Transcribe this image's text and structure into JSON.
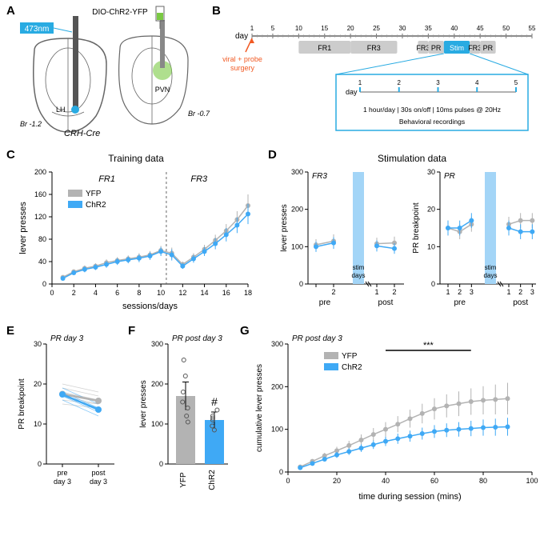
{
  "panelA": {
    "label": "A",
    "virus_label": "DIO-ChR2-YFP",
    "wavelength": "473nm",
    "wavelength_bg": "#29abe2",
    "region_lh": "LH",
    "region_pvn": "PVN",
    "bregma1": "Br -1.2",
    "bregma2": "Br -0.7",
    "genotype": "CRH-Cre",
    "brain_outline": "#666666",
    "fiber_color": "#555555",
    "virus_color": "#7ac943"
  },
  "panelB": {
    "label": "B",
    "day_label": "day",
    "days": [
      1,
      5,
      10,
      15,
      20,
      25,
      30,
      35,
      40,
      45,
      50,
      55
    ],
    "surgery_label": "viral + probe\nsurgery",
    "surgery_color": "#f15a24",
    "phases": [
      {
        "label": "FR1",
        "start": 10,
        "end": 20,
        "color": "#cccccc"
      },
      {
        "label": "FR3",
        "start": 20,
        "end": 29,
        "color": "#cccccc"
      },
      {
        "label": "FR3",
        "start": 33,
        "end": 35,
        "color": "#cccccc"
      },
      {
        "label": "PR",
        "start": 35,
        "end": 38,
        "color": "#cccccc"
      },
      {
        "label": "Stim",
        "start": 38,
        "end": 43,
        "color": "#29abe2"
      },
      {
        "label": "FR3",
        "start": 43,
        "end": 45,
        "color": "#cccccc"
      },
      {
        "label": "PR",
        "start": 45,
        "end": 48,
        "color": "#cccccc"
      }
    ],
    "inset": {
      "day_label": "day",
      "days": [
        1,
        2,
        3,
        4,
        5
      ],
      "protocol": "1 hour/day | 30s on/off | 10ms pulses @ 20Hz",
      "caption": "Behavioral recordings",
      "border_color": "#29abe2",
      "tick_color": "#29abe2"
    }
  },
  "panelC": {
    "label": "C",
    "title": "Training data",
    "phases": [
      "FR1",
      "FR3"
    ],
    "ylabel": "lever presses",
    "xlabel": "sessions/days",
    "yticks": [
      0,
      40,
      80,
      120,
      160,
      200
    ],
    "xticks": [
      0,
      2,
      4,
      6,
      8,
      10,
      12,
      14,
      16,
      18
    ],
    "divider_x": 10.5,
    "legend": [
      {
        "label": "YFP",
        "color": "#b3b3b3"
      },
      {
        "label": "ChR2",
        "color": "#3fa9f5"
      }
    ],
    "series": {
      "yfp": {
        "color": "#b3b3b3",
        "x": [
          1,
          2,
          3,
          4,
          5,
          6,
          7,
          8,
          9,
          10,
          11,
          12,
          13,
          14,
          15,
          16,
          17,
          18
        ],
        "y": [
          12,
          22,
          28,
          32,
          38,
          42,
          45,
          48,
          52,
          60,
          55,
          35,
          48,
          62,
          78,
          95,
          115,
          140
        ],
        "err": [
          3,
          4,
          5,
          5,
          6,
          6,
          6,
          7,
          7,
          8,
          10,
          5,
          7,
          8,
          10,
          12,
          15,
          20
        ]
      },
      "chr2": {
        "color": "#3fa9f5",
        "x": [
          1,
          2,
          3,
          4,
          5,
          6,
          7,
          8,
          9,
          10,
          11,
          12,
          13,
          14,
          15,
          16,
          17,
          18
        ],
        "y": [
          10,
          20,
          26,
          30,
          35,
          40,
          43,
          46,
          50,
          58,
          52,
          32,
          45,
          58,
          72,
          88,
          105,
          125
        ],
        "err": [
          3,
          4,
          5,
          5,
          6,
          6,
          6,
          7,
          7,
          8,
          10,
          5,
          7,
          8,
          10,
          12,
          14,
          18
        ]
      }
    }
  },
  "panelD": {
    "label": "D",
    "title": "Stimulation data",
    "left": {
      "phase": "FR3",
      "ylabel": "lever presses",
      "yticks": [
        0,
        100,
        200,
        300
      ],
      "xticks_pre": [
        "",
        "2"
      ],
      "xticks_post": [
        "1",
        "2"
      ],
      "xlabel_pre": "pre",
      "xlabel_post": "post",
      "stim_label": "stim\ndays",
      "stim_color": "#a3d5f7",
      "yfp": {
        "color": "#b3b3b3",
        "pre": [
          105,
          115
        ],
        "post": [
          108,
          110
        ],
        "err": [
          15,
          18,
          16,
          17
        ]
      },
      "chr2": {
        "color": "#3fa9f5",
        "pre": [
          100,
          110
        ],
        "post": [
          102,
          95
        ],
        "err": [
          14,
          16,
          15,
          14
        ]
      }
    },
    "right": {
      "phase": "PR",
      "ylabel": "PR breakpoint",
      "yticks": [
        0,
        10,
        20,
        30
      ],
      "xticks_pre": [
        "1",
        "2",
        "3"
      ],
      "xticks_post": [
        "1",
        "2",
        "3"
      ],
      "xlabel_pre": "pre",
      "xlabel_post": "post",
      "stim_label": "stim\ndays",
      "stim_color": "#a3d5f7",
      "yfp": {
        "color": "#b3b3b3",
        "pre": [
          15,
          14,
          16
        ],
        "post": [
          16,
          17,
          17
        ],
        "err": [
          2,
          2,
          2,
          2,
          2,
          2
        ]
      },
      "chr2": {
        "color": "#3fa9f5",
        "pre": [
          15,
          15,
          17
        ],
        "post": [
          15,
          14,
          14
        ],
        "err": [
          2,
          2,
          2,
          2,
          2,
          2
        ]
      }
    }
  },
  "panelE": {
    "label": "E",
    "phase": "PR day 3",
    "ylabel": "PR breakpoint",
    "yticks": [
      0,
      10,
      20,
      30
    ],
    "xticks": [
      "pre\nday 3",
      "post\nday 3"
    ],
    "yfp_color": "#b3b3b3",
    "chr2_color": "#3fa9f5",
    "yfp_lines": [
      [
        18,
        16
      ],
      [
        17,
        15
      ],
      [
        16,
        15
      ],
      [
        19,
        17
      ],
      [
        15,
        14
      ],
      [
        20,
        18
      ]
    ],
    "chr2_lines": [
      [
        18,
        14
      ],
      [
        17,
        13
      ],
      [
        16,
        12
      ],
      [
        19,
        15
      ],
      [
        17,
        14
      ]
    ],
    "yfp_mean": [
      17.5,
      15.8
    ],
    "chr2_mean": [
      17.4,
      13.6
    ]
  },
  "panelF": {
    "label": "F",
    "phase": "PR post day 3",
    "ylabel": "lever presses",
    "yticks": [
      0,
      100,
      200,
      300
    ],
    "groups": [
      {
        "label": "YFP",
        "mean": 170,
        "err": 35,
        "color": "#b3b3b3",
        "points": [
          120,
          140,
          155,
          180,
          220,
          260,
          105
        ]
      },
      {
        "label": "ChR2",
        "mean": 110,
        "err": 20,
        "color": "#3fa9f5",
        "points": [
          85,
          95,
          110,
          120,
          135,
          115
        ]
      }
    ],
    "sig": "#"
  },
  "panelG": {
    "label": "G",
    "phase": "PR post day 3",
    "ylabel": "cumulative lever presses",
    "xlabel": "time during session (mins)",
    "yticks": [
      0,
      100,
      200,
      300
    ],
    "xticks": [
      0,
      20,
      40,
      60,
      80,
      100
    ],
    "sig": "***",
    "sig_range": [
      40,
      75
    ],
    "legend": [
      {
        "label": "YFP",
        "color": "#b3b3b3"
      },
      {
        "label": "ChR2",
        "color": "#3fa9f5"
      }
    ],
    "yfp": {
      "color": "#b3b3b3",
      "x": [
        5,
        10,
        15,
        20,
        25,
        30,
        35,
        40,
        45,
        50,
        55,
        60,
        65,
        70,
        75,
        80,
        85,
        90
      ],
      "y": [
        12,
        25,
        38,
        50,
        62,
        75,
        88,
        100,
        112,
        125,
        137,
        148,
        155,
        160,
        165,
        168,
        170,
        172
      ],
      "err": [
        3,
        5,
        7,
        9,
        11,
        13,
        15,
        17,
        19,
        21,
        23,
        25,
        27,
        29,
        31,
        33,
        35,
        37
      ]
    },
    "chr2": {
      "color": "#3fa9f5",
      "x": [
        5,
        10,
        15,
        20,
        25,
        30,
        35,
        40,
        45,
        50,
        55,
        60,
        65,
        70,
        75,
        80,
        85,
        90
      ],
      "y": [
        10,
        20,
        30,
        40,
        48,
        56,
        64,
        72,
        78,
        84,
        90,
        95,
        98,
        100,
        102,
        104,
        105,
        106
      ],
      "err": [
        2,
        4,
        5,
        7,
        8,
        9,
        10,
        11,
        12,
        13,
        14,
        15,
        16,
        17,
        18,
        19,
        20,
        21
      ]
    }
  }
}
